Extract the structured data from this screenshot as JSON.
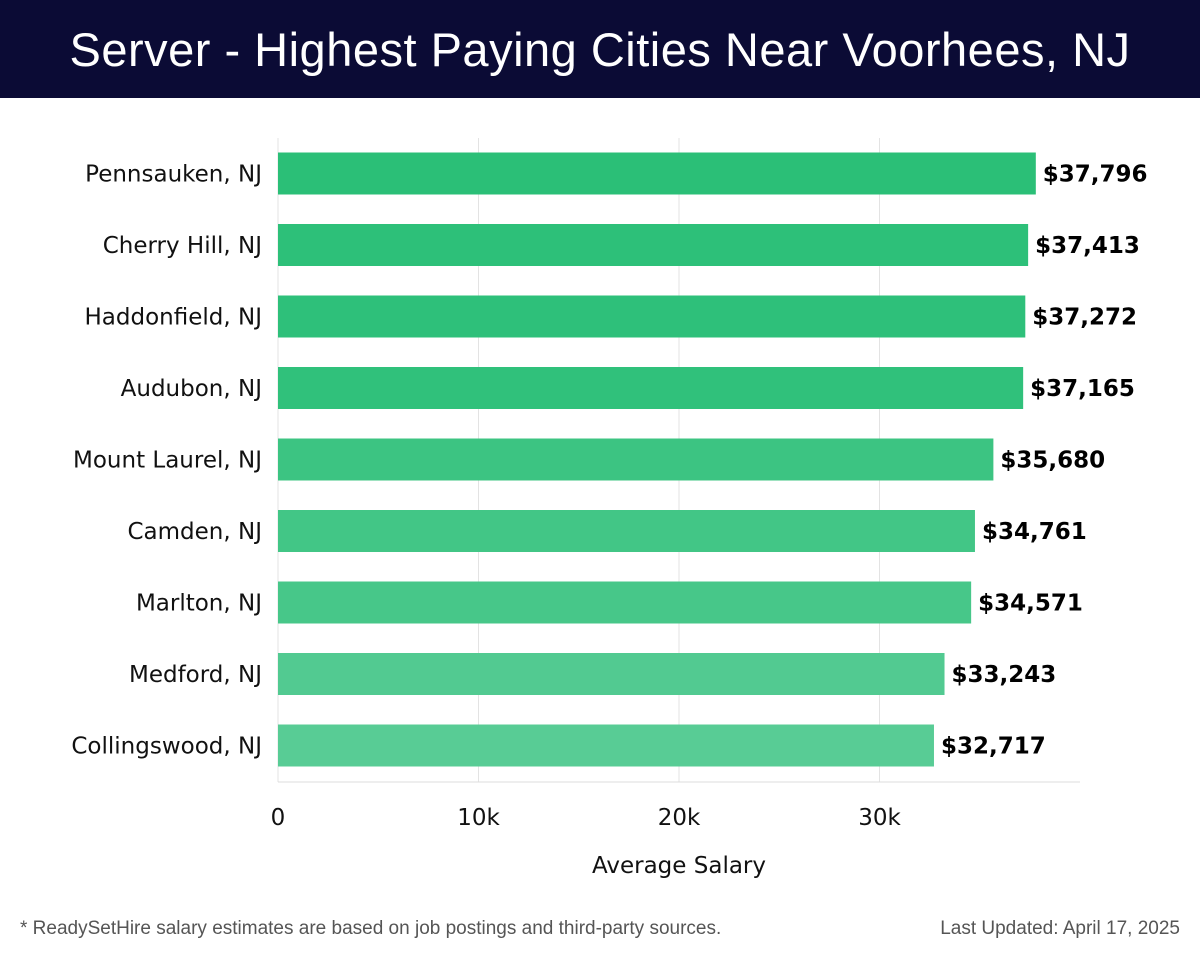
{
  "header": {
    "title": "Server - Highest Paying Cities Near Voorhees, NJ"
  },
  "chart_data": {
    "type": "bar",
    "orientation": "horizontal",
    "categories": [
      "Pennsauken, NJ",
      "Cherry Hill, NJ",
      "Haddonfield, NJ",
      "Audubon, NJ",
      "Mount Laurel, NJ",
      "Camden, NJ",
      "Marlton, NJ",
      "Medford, NJ",
      "Collingswood, NJ"
    ],
    "values": [
      37796,
      37413,
      37272,
      37165,
      35680,
      34761,
      34571,
      33243,
      32717
    ],
    "value_labels": [
      "$37,796",
      "$37,413",
      "$37,272",
      "$37,165",
      "$35,680",
      "$34,761",
      "$34,571",
      "$33,243",
      "$32,717"
    ],
    "title": "Server - Highest Paying Cities Near Voorhees, NJ",
    "xlabel": "Average Salary",
    "ylabel": "",
    "xlim": [
      0,
      40000
    ],
    "xticks": [
      {
        "value": 0,
        "label": "0"
      },
      {
        "value": 10000,
        "label": "10k"
      },
      {
        "value": 20000,
        "label": "20k"
      },
      {
        "value": 30000,
        "label": "30k"
      }
    ],
    "grid": true,
    "bar_colors": [
      "#2bbf77",
      "#2dc079",
      "#2ec07a",
      "#30c17b",
      "#3cc482",
      "#42c686",
      "#47c789",
      "#52ca91",
      "#58cc95"
    ]
  },
  "footer": {
    "note": "* ReadySetHire salary estimates are based on job postings and third-party sources.",
    "updated": "Last Updated: April 17, 2025"
  }
}
